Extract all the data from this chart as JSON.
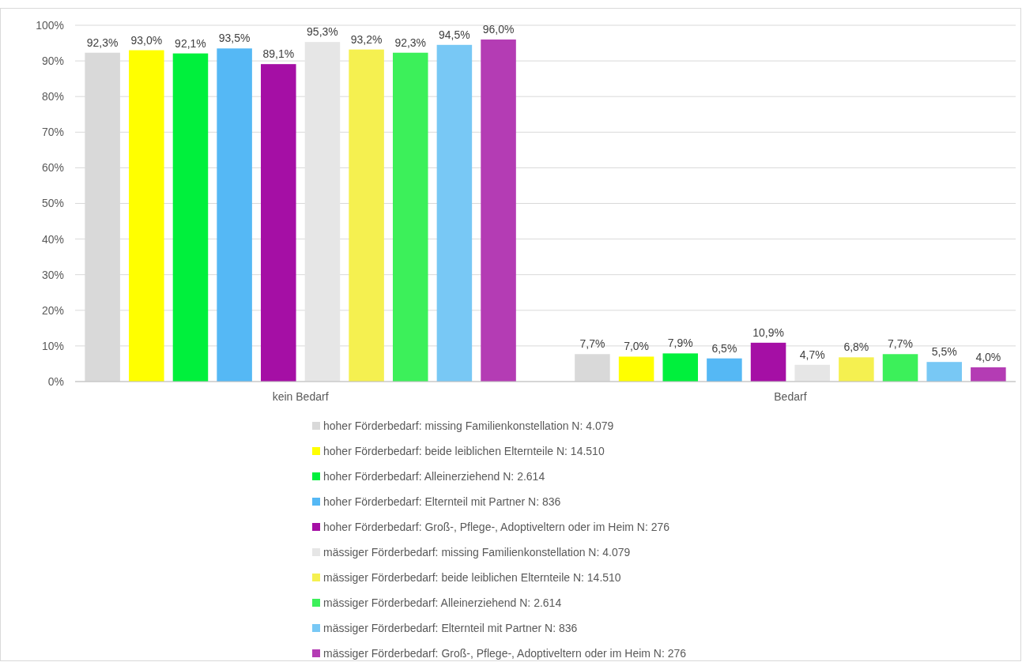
{
  "chart_data": {
    "type": "bar",
    "categories": [
      "kein Bedarf",
      "Bedarf"
    ],
    "ylim": [
      0,
      100
    ],
    "yticks": [
      {
        "value": 0,
        "label": "0%"
      },
      {
        "value": 10,
        "label": "10%"
      },
      {
        "value": 20,
        "label": "20%"
      },
      {
        "value": 30,
        "label": "30%"
      },
      {
        "value": 40,
        "label": "40%"
      },
      {
        "value": 50,
        "label": "50%"
      },
      {
        "value": 60,
        "label": "60%"
      },
      {
        "value": 70,
        "label": "70%"
      },
      {
        "value": 80,
        "label": "80%"
      },
      {
        "value": 90,
        "label": "90%"
      },
      {
        "value": 100,
        "label": "100%"
      }
    ],
    "grid": "y",
    "legend": "bottom",
    "series": [
      {
        "name": "hoher Förderbedarf: missing Familienkonstellation N: 4.079",
        "color": "#d9d9d9",
        "values": [
          92.3,
          7.7
        ],
        "value_labels": [
          "92,3%",
          "7,7%"
        ]
      },
      {
        "name": "hoher Förderbedarf: beide leiblichen Elternteile N: 14.510",
        "color": "#ffff00",
        "values": [
          93.0,
          7.0
        ],
        "value_labels": [
          "93,0%",
          "7,0%"
        ]
      },
      {
        "name": "hoher Förderbedarf: Alleinerziehend N: 2.614",
        "color": "#00f03c",
        "values": [
          92.1,
          7.9
        ],
        "value_labels": [
          "92,1%",
          "7,9%"
        ]
      },
      {
        "name": "hoher Förderbedarf: Elternteil mit Partner N: 836",
        "color": "#55b8f5",
        "values": [
          93.5,
          6.5
        ],
        "value_labels": [
          "93,5%",
          "6,5%"
        ]
      },
      {
        "name": "hoher Förderbedarf: Groß-, Pflege-, Adoptiveltern oder im Heim N: 276",
        "color": "#a50fa5",
        "values": [
          89.1,
          10.9
        ],
        "value_labels": [
          "89,1%",
          "10,9%"
        ]
      },
      {
        "name": "mässiger Förderbedarf: missing Familienkonstellation N: 4.079",
        "color": "#e6e6e6",
        "values": [
          95.3,
          4.7
        ],
        "value_labels": [
          "95,3%",
          "4,7%"
        ]
      },
      {
        "name": "mässiger Förderbedarf: beide leiblichen Elternteile N: 14.510",
        "color": "#f5f050",
        "values": [
          93.2,
          6.8
        ],
        "value_labels": [
          "93,2%",
          "6,8%"
        ]
      },
      {
        "name": "mässiger Förderbedarf: Alleinerziehend N: 2.614",
        "color": "#3cf05a",
        "values": [
          92.3,
          7.7
        ],
        "value_labels": [
          "92,3%",
          "7,7%"
        ]
      },
      {
        "name": "mässiger Förderbedarf: Elternteil mit Partner N: 836",
        "color": "#78c8f5",
        "values": [
          94.5,
          5.5
        ],
        "value_labels": [
          "94,5%",
          "5,5%"
        ]
      },
      {
        "name": "mässiger Förderbedarf: Groß-, Pflege-, Adoptiveltern oder im Heim N: 276",
        "color": "#b43cb4",
        "values": [
          96.0,
          4.0
        ],
        "value_labels": [
          "96,0%",
          "4,0%"
        ]
      }
    ]
  }
}
